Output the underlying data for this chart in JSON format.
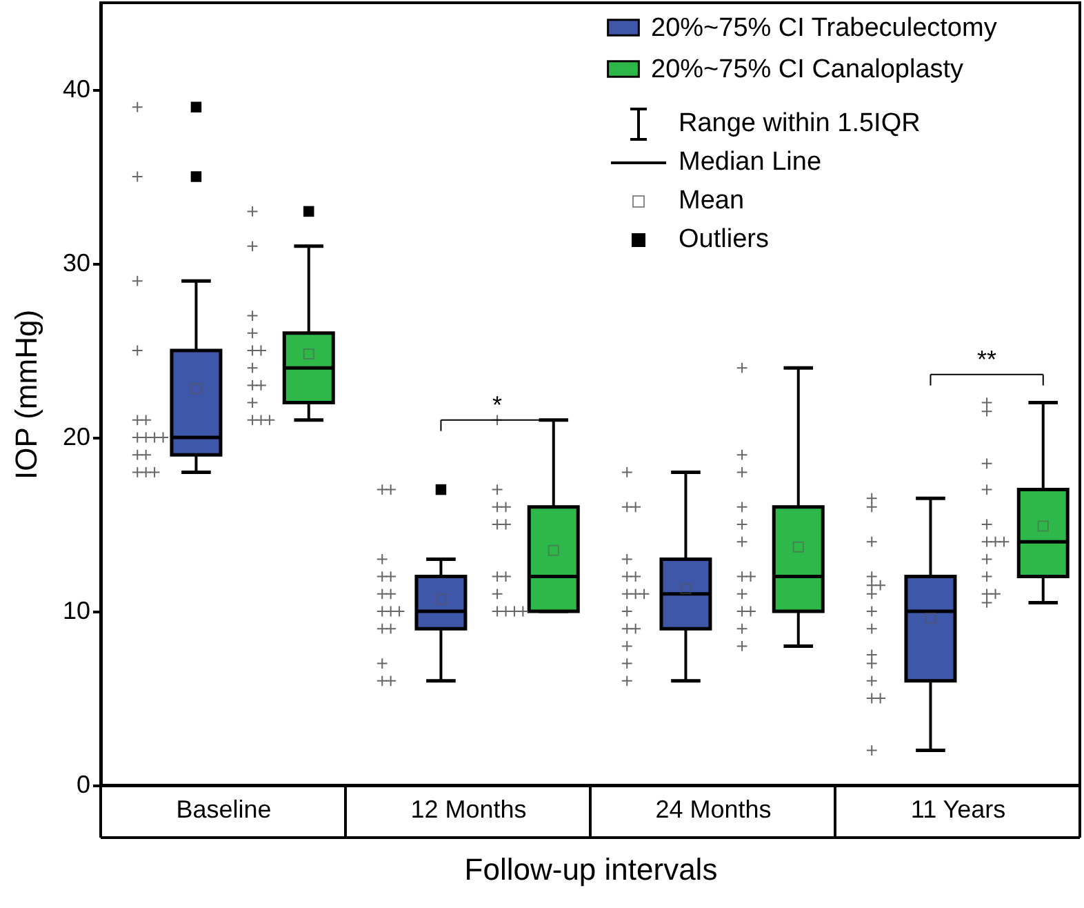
{
  "chart_data": {
    "type": "box",
    "xlabel": "Follow-up intervals",
    "ylabel": "IOP (mmHg)",
    "categories": [
      "Baseline",
      "12 Months",
      "24 Months",
      "11 Years"
    ],
    "ylim": [
      0,
      45
    ],
    "yticks": [
      0,
      10,
      20,
      30,
      40
    ],
    "grid": false,
    "legend": "top right",
    "series": [
      {
        "name": "20%~75% CI Trabeculectomy",
        "color": "#3f57a8",
        "boxes": [
          {
            "low": 18,
            "q1": 19,
            "median": 20,
            "q3": 25,
            "high": 29,
            "mean": 22.8,
            "outliers": [
              35,
              39
            ]
          },
          {
            "low": 6,
            "q1": 9,
            "median": 10,
            "q3": 12,
            "high": 13,
            "mean": 10.7,
            "outliers": [
              17
            ]
          },
          {
            "low": 6,
            "q1": 9,
            "median": 11,
            "q3": 13,
            "high": 18,
            "mean": 11.3
          },
          {
            "low": 2,
            "q1": 6,
            "median": 10,
            "q3": 12,
            "high": 16.5,
            "mean": 9.6
          }
        ]
      },
      {
        "name": "20%~75% CI Canaloplasty",
        "color": "#2fb84a",
        "boxes": [
          {
            "low": 21,
            "q1": 22,
            "median": 24,
            "q3": 26,
            "high": 31,
            "mean": 24.8,
            "outliers": [
              33
            ]
          },
          {
            "low": 10,
            "q1": 10,
            "median": 12,
            "q3": 16,
            "high": 21,
            "mean": 13.5
          },
          {
            "low": 8,
            "q1": 10,
            "median": 12,
            "q3": 16,
            "high": 24,
            "mean": 13.7
          },
          {
            "low": 10.5,
            "q1": 12,
            "median": 14,
            "q3": 17,
            "high": 22,
            "mean": 14.9
          }
        ]
      },
      {
        "type": "scatter",
        "color": "#666666",
        "marker": "cross",
        "x": [
          "Baseline",
          "Baseline",
          "Baseline",
          "Baseline",
          "Baseline",
          "Baseline",
          "Baseline",
          "Baseline",
          "Baseline",
          "Baseline",
          "Baseline",
          "Baseline",
          "Baseline",
          "Baseline",
          "Baseline",
          "12 Months",
          "12 Months",
          "12 Months",
          "12 Months",
          "12 Months",
          "12 Months",
          "12 Months",
          "12 Months",
          "12 Months",
          "12 Months",
          "12 Months",
          "12 Months",
          "12 Months",
          "12 Months",
          "12 Months",
          "24 Months",
          "24 Months",
          "24 Months",
          "24 Months",
          "24 Months",
          "24 Months",
          "24 Months",
          "24 Months",
          "24 Months",
          "24 Months",
          "24 Months",
          "24 Months",
          "24 Months",
          "24 Months",
          "24 Months",
          "11 Years",
          "11 Years",
          "11 Years",
          "11 Years",
          "11 Years",
          "11 Years",
          "11 Years",
          "11 Years",
          "11 Years",
          "11 Years",
          "11 Years",
          "11 Years",
          "11 Years",
          "11 Years",
          "11 Years"
        ],
        "values": [
          39,
          35,
          29,
          25,
          21,
          21,
          20,
          20,
          20,
          20,
          19,
          19,
          18,
          18,
          18,
          17,
          17,
          13,
          12,
          12,
          11,
          11,
          10,
          10,
          10,
          9,
          9,
          7,
          6,
          6,
          18,
          16,
          16,
          13,
          12,
          12,
          11,
          11,
          11,
          10,
          9,
          9,
          8,
          7,
          6,
          16.5,
          16,
          14,
          12,
          11.5,
          11.5,
          11,
          10,
          9,
          7.5,
          7,
          6,
          5,
          5,
          2
        ]
      },
      {
        "type": "scatter",
        "color": "#666666",
        "marker": "cross",
        "x": [
          "Baseline",
          "Baseline",
          "Baseline",
          "Baseline",
          "Baseline",
          "Baseline",
          "Baseline",
          "Baseline",
          "Baseline",
          "Baseline",
          "Baseline",
          "Baseline",
          "Baseline",
          "12 Months",
          "12 Months",
          "12 Months",
          "12 Months",
          "12 Months",
          "12 Months",
          "12 Months",
          "12 Months",
          "12 Months",
          "12 Months",
          "12 Months",
          "12 Months",
          "12 Months",
          "24 Months",
          "24 Months",
          "24 Months",
          "24 Months",
          "24 Months",
          "24 Months",
          "24 Months",
          "24 Months",
          "24 Months",
          "24 Months",
          "24 Months",
          "24 Months",
          "24 Months",
          "11 Years",
          "11 Years",
          "11 Years",
          "11 Years",
          "11 Years",
          "11 Years",
          "11 Years",
          "11 Years",
          "11 Years",
          "11 Years",
          "11 Years",
          "11 Years",
          "11 Years"
        ],
        "values": [
          33,
          31,
          27,
          26,
          25,
          25,
          24,
          23,
          23,
          22,
          21,
          21,
          21,
          21,
          17,
          16,
          16,
          15,
          15,
          12,
          12,
          11,
          10,
          10,
          10,
          10,
          24,
          19,
          18,
          16,
          15,
          14,
          12,
          12,
          11,
          10,
          10,
          9,
          8,
          22,
          21.5,
          18.5,
          17,
          15,
          14,
          14,
          14,
          13,
          12,
          11,
          11,
          10.5
        ]
      }
    ],
    "annotations": [
      "*",
      "**",
      "Range within 1.5IQR",
      "Median Line",
      "Mean",
      "Outliers"
    ]
  }
}
